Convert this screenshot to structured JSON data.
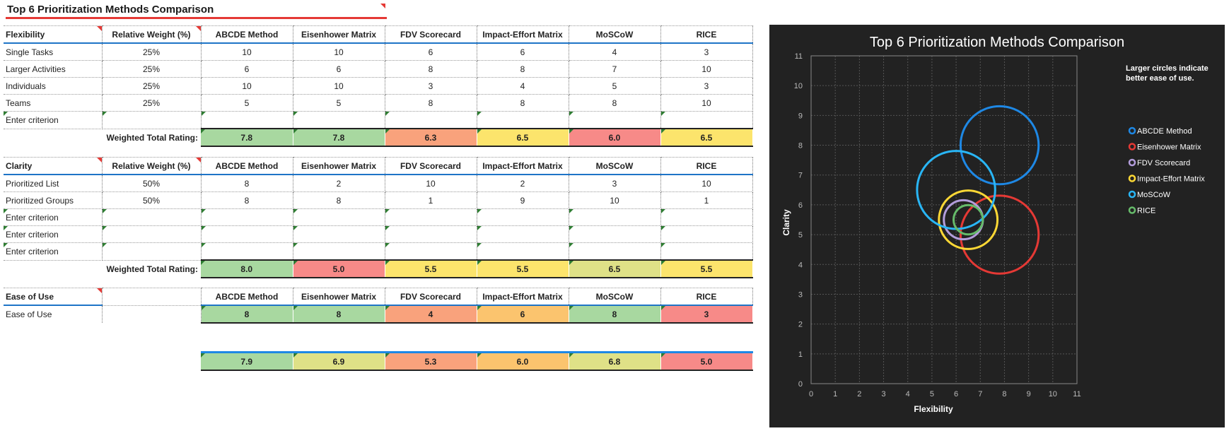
{
  "sheet_title": "Top 6 Prioritization Methods Comparison",
  "methods": [
    "ABCDE Method",
    "Eisenhower Matrix",
    "FDV Scorecard",
    "Impact-Effort Matrix",
    "MoSCoW",
    "RICE"
  ],
  "flexibility": {
    "header": "Flexibility",
    "weight_header": "Relative Weight (%)",
    "rows": [
      {
        "label": "Single Tasks",
        "weight": "25%",
        "values": [
          "10",
          "10",
          "6",
          "6",
          "4",
          "3"
        ]
      },
      {
        "label": "Larger Activities",
        "weight": "25%",
        "values": [
          "6",
          "6",
          "8",
          "8",
          "7",
          "10"
        ]
      },
      {
        "label": "Individuals",
        "weight": "25%",
        "values": [
          "10",
          "10",
          "3",
          "4",
          "5",
          "3"
        ]
      },
      {
        "label": "Teams",
        "weight": "25%",
        "values": [
          "5",
          "5",
          "8",
          "8",
          "8",
          "10"
        ]
      },
      {
        "label": "Enter criterion",
        "weight": "",
        "values": [
          "",
          "",
          "",
          "",
          "",
          ""
        ]
      }
    ],
    "total_label": "Weighted Total Rating:",
    "totals": [
      "7.8",
      "7.8",
      "6.3",
      "6.5",
      "6.0",
      "6.5"
    ]
  },
  "clarity": {
    "header": "Clarity",
    "weight_header": "Relative Weight (%)",
    "rows": [
      {
        "label": "Prioritized List",
        "weight": "50%",
        "values": [
          "8",
          "2",
          "10",
          "2",
          "3",
          "10"
        ]
      },
      {
        "label": "Prioritized Groups",
        "weight": "50%",
        "values": [
          "8",
          "8",
          "1",
          "9",
          "10",
          "1"
        ]
      },
      {
        "label": "Enter criterion",
        "weight": "",
        "values": [
          "",
          "",
          "",
          "",
          "",
          ""
        ]
      },
      {
        "label": "Enter criterion",
        "weight": "",
        "values": [
          "",
          "",
          "",
          "",
          "",
          ""
        ]
      },
      {
        "label": "Enter criterion",
        "weight": "",
        "values": [
          "",
          "",
          "",
          "",
          "",
          ""
        ]
      }
    ],
    "total_label": "Weighted Total Rating:",
    "totals": [
      "8.0",
      "5.0",
      "5.5",
      "5.5",
      "6.5",
      "5.5"
    ]
  },
  "ease": {
    "header": "Ease of Use",
    "row_label": "Ease of Use",
    "values": [
      "8",
      "8",
      "4",
      "6",
      "8",
      "3"
    ]
  },
  "overall": [
    "7.9",
    "6.9",
    "5.3",
    "6.0",
    "6.8",
    "5.0"
  ],
  "rating_colors": {
    "green": "#a8d8a0",
    "ygreen": "#dfe187",
    "yellow": "#fce46c",
    "orange": "#fbc46e",
    "salmon": "#f9a27c",
    "red": "#f78a88"
  },
  "cell_colors": {
    "flex": [
      "green",
      "green",
      "salmon",
      "yellow",
      "red",
      "yellow"
    ],
    "clarity": [
      "green",
      "red",
      "yellow",
      "yellow",
      "ygreen",
      "yellow"
    ],
    "ease": [
      "green",
      "green",
      "salmon",
      "orange",
      "green",
      "red"
    ],
    "overall": [
      "green",
      "ygreen",
      "salmon",
      "orange",
      "ygreen",
      "red"
    ]
  },
  "chart_data": {
    "type": "scatter",
    "title": "Top 6 Prioritization Methods Comparison",
    "note": "Larger circles indicate better ease of use.",
    "xlabel": "Flexibility",
    "ylabel": "Clarity",
    "xlim": [
      0,
      11
    ],
    "ylim": [
      0,
      11
    ],
    "xticks": [
      "0",
      "1",
      "2",
      "3",
      "4",
      "5",
      "6",
      "7",
      "8",
      "9",
      "10",
      "11"
    ],
    "yticks": [
      "0",
      "1",
      "2",
      "3",
      "4",
      "5",
      "6",
      "7",
      "8",
      "9",
      "10",
      "11"
    ],
    "grid": true,
    "legend_position": "right",
    "series": [
      {
        "name": "ABCDE Method",
        "x": 7.8,
        "y": 8.0,
        "size": 8,
        "color": "#1e88e5"
      },
      {
        "name": "Eisenhower Matrix",
        "x": 7.8,
        "y": 5.0,
        "size": 8,
        "color": "#e53935"
      },
      {
        "name": "FDV Scorecard",
        "x": 6.3,
        "y": 5.5,
        "size": 4,
        "color": "#b39ddb"
      },
      {
        "name": "Impact-Effort Matrix",
        "x": 6.5,
        "y": 5.5,
        "size": 6,
        "color": "#fdd835"
      },
      {
        "name": "MoSCoW",
        "x": 6.0,
        "y": 6.5,
        "size": 8,
        "color": "#29b6f6"
      },
      {
        "name": "RICE",
        "x": 6.5,
        "y": 5.5,
        "size": 3,
        "color": "#66bb6a"
      }
    ]
  }
}
